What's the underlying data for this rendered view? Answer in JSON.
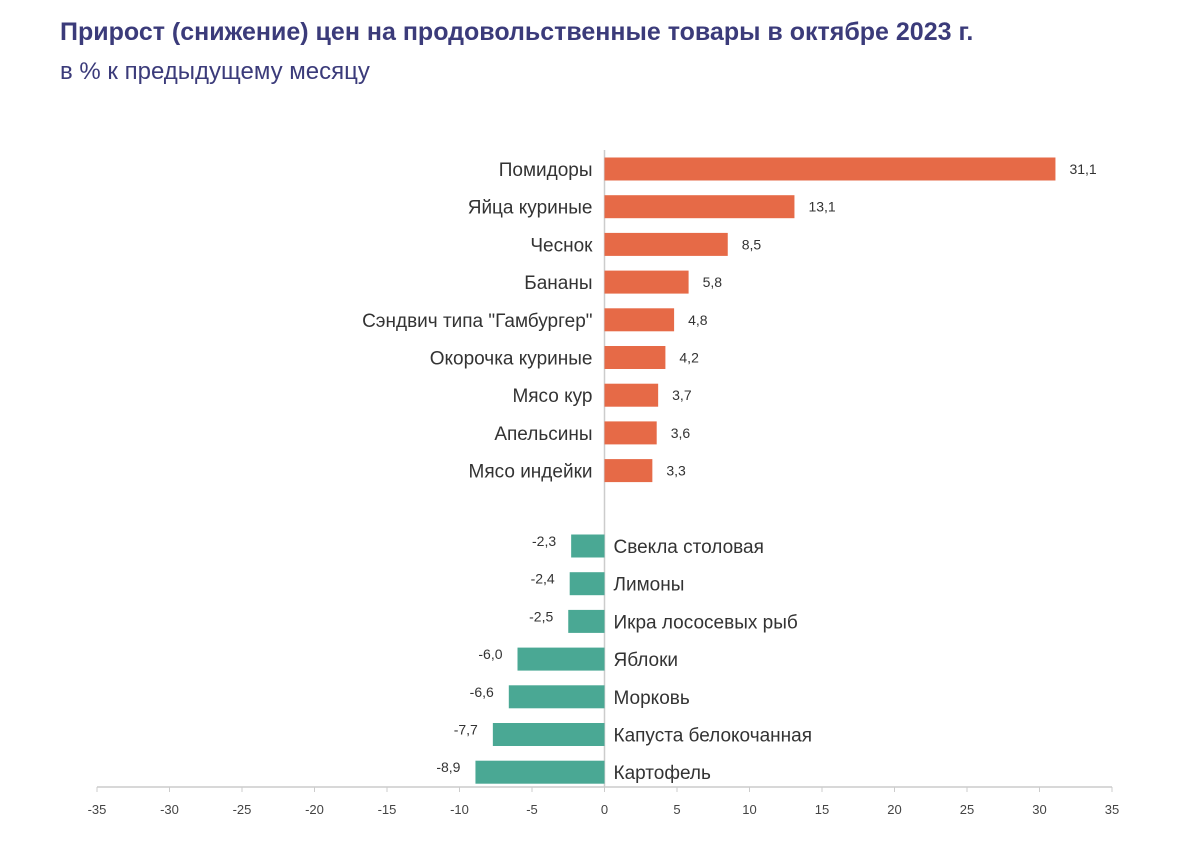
{
  "chart_data": {
    "type": "bar",
    "orientation": "horizontal",
    "title": "Прирост (снижение) цен на продовольственные товары в октябре 2023 г.",
    "subtitle": "в % к предыдущему месяцу",
    "categories": [
      "Помидоры",
      "Яйца куриные",
      "Чеснок",
      "Бананы",
      "Сэндвич типа \"Гамбургер\"",
      "Окорочка куриные",
      "Мясо кур",
      "Апельсины",
      "Мясо индейки",
      "Свекла столовая",
      "Лимоны",
      "Икра лососевых рыб",
      "Яблоки",
      "Морковь",
      "Капуста белокочанная",
      "Картофель"
    ],
    "values": [
      31.1,
      13.1,
      8.5,
      5.8,
      4.8,
      4.2,
      3.7,
      3.6,
      3.3,
      -2.3,
      -2.4,
      -2.5,
      -6.0,
      -6.6,
      -7.7,
      -8.9
    ],
    "value_labels": [
      "31,1",
      "13,1",
      "8,5",
      "5,8",
      "4,8",
      "4,2",
      "3,7",
      "3,6",
      "3,3",
      "-2,3",
      "-2,4",
      "-2,5",
      "-6,0",
      "-6,6",
      "-7,7",
      "-8,9"
    ],
    "xlim": [
      -35,
      35
    ],
    "xticks": [
      -35,
      -30,
      -25,
      -20,
      -15,
      -10,
      -5,
      0,
      5,
      10,
      15,
      20,
      25,
      30,
      35
    ],
    "grid": false,
    "legend": "none",
    "colors": {
      "positive": "#e66a47",
      "negative": "#4aa894",
      "axis": "#cccccc"
    }
  }
}
